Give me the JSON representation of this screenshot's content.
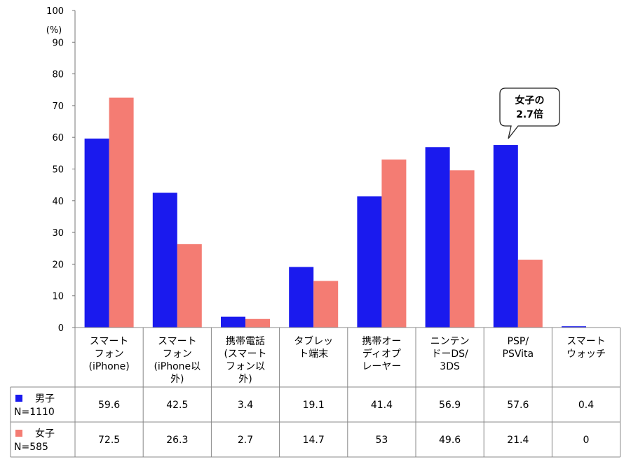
{
  "chart_data": {
    "type": "bar",
    "ylabel": "(%)",
    "ylim": [
      0,
      100
    ],
    "yticks": [
      0,
      10,
      20,
      30,
      40,
      50,
      60,
      70,
      80,
      90,
      100
    ],
    "grid": false,
    "categories": [
      [
        "スマート",
        "フォン",
        "(iPhone)"
      ],
      [
        "スマート",
        "フォン",
        "(iPhone以",
        "外)"
      ],
      [
        "携帯電話",
        "(スマート",
        "フォン以",
        "外)"
      ],
      [
        "タブレッ",
        "ト端末"
      ],
      [
        "携帯オー",
        "ディオプ",
        "レーヤー"
      ],
      [
        "ニンテン",
        "ドーDS/",
        "3DS"
      ],
      [
        "PSP/",
        "PSVita"
      ],
      [
        "スマート",
        "ウォッチ"
      ]
    ],
    "series": [
      {
        "name": "男子",
        "n_label": "N=1110",
        "color": "#1a1aee",
        "values": [
          59.6,
          42.5,
          3.4,
          19.1,
          41.4,
          56.9,
          57.6,
          0.4
        ],
        "labels": [
          "59.6",
          "42.5",
          "3.4",
          "19.1",
          "41.4",
          "56.9",
          "57.6",
          "0.4"
        ]
      },
      {
        "name": "女子",
        "n_label": "N=585",
        "color": "#f47c73",
        "values": [
          72.5,
          26.3,
          2.7,
          14.7,
          53,
          49.6,
          21.4,
          0
        ],
        "labels": [
          "72.5",
          "26.3",
          "2.7",
          "14.7",
          "53",
          "49.6",
          "21.4",
          "0"
        ]
      }
    ],
    "annotation": {
      "lines": [
        "女子の",
        "2.7倍"
      ],
      "category_index": 6
    }
  }
}
